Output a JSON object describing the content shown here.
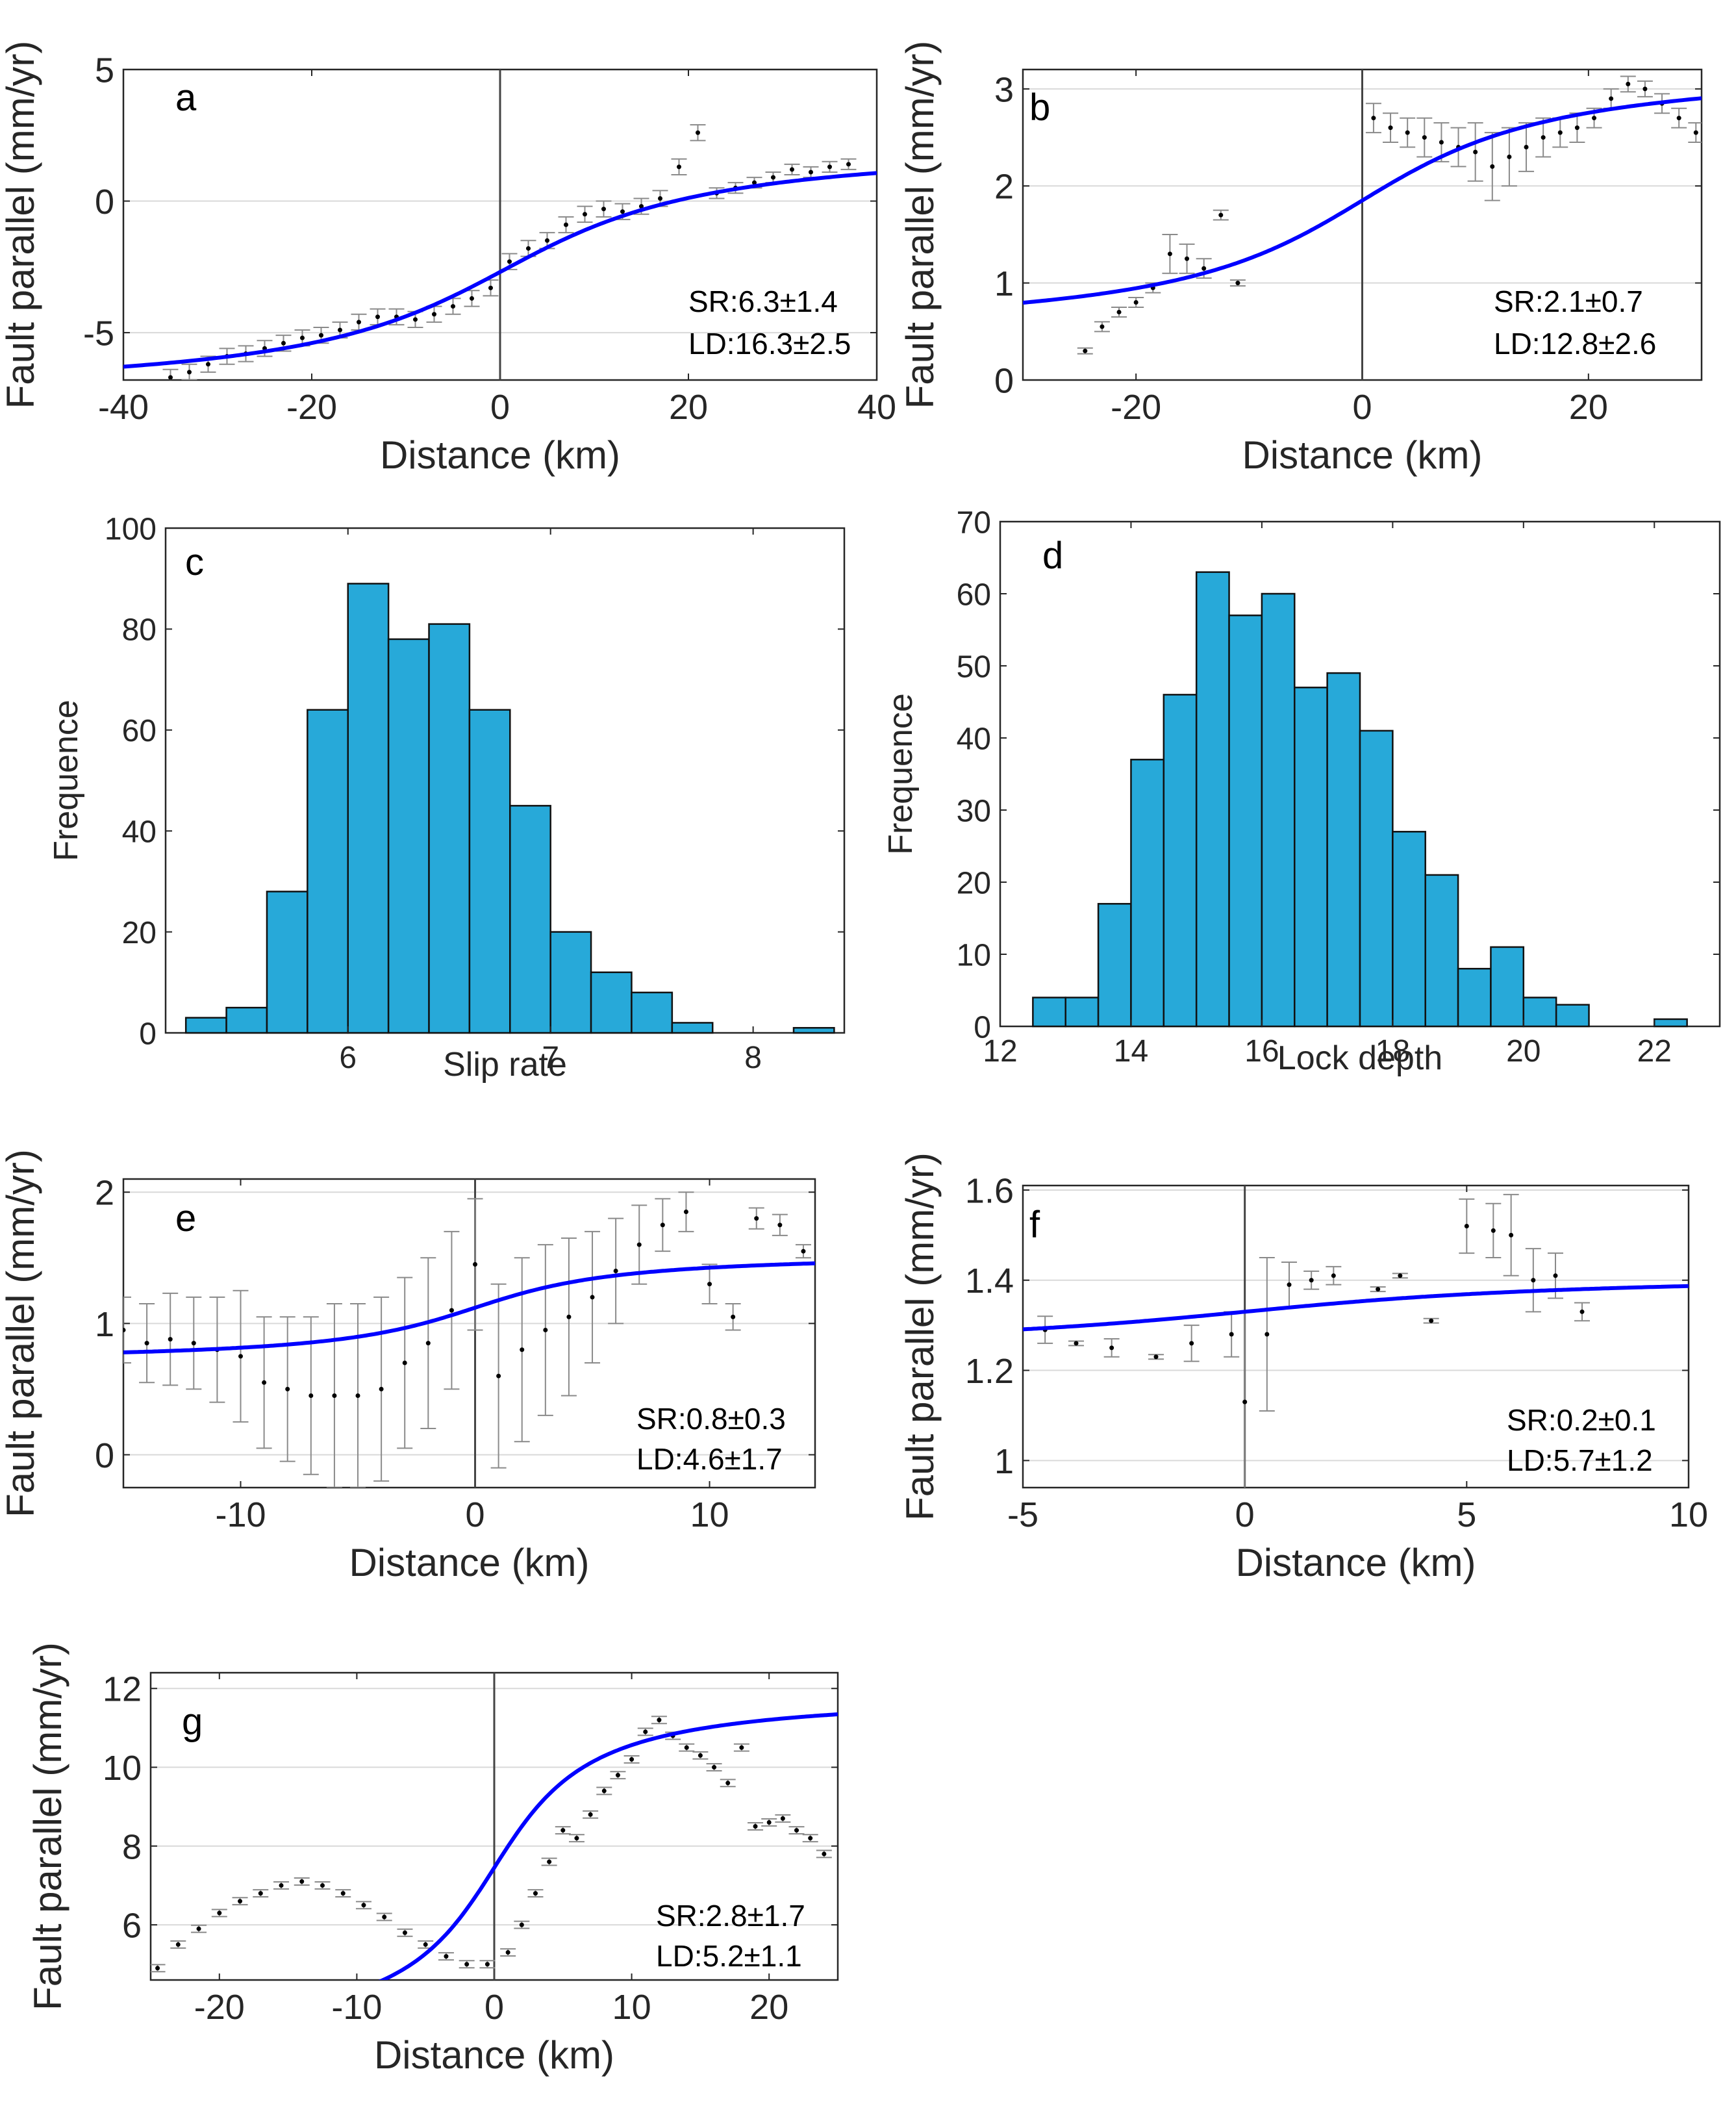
{
  "colors": {
    "fit_line": "#0000ff",
    "bar_fill": "#27a9d9",
    "bar_edge": "#111111",
    "point": "#000000",
    "error_bar": "#8a8a8a",
    "axis": "#262626",
    "grid": "#d9d9d9",
    "zero_line": "#444444"
  },
  "chart_data": [
    {
      "id": "a",
      "type": "line",
      "letter": "a",
      "xlabel": "Distance (km)",
      "ylabel": "Fault parallel (mm/yr)",
      "xlim": [
        -40,
        40
      ],
      "ylim": [
        -6.8,
        5
      ],
      "xticks": [
        -40,
        -20,
        0,
        20,
        40
      ],
      "yticks": [
        -5,
        0,
        5
      ],
      "grid": true,
      "zero_line": 0,
      "annotations": [
        "SR:6.3±1.4",
        "LD:16.3±2.5"
      ],
      "fit": {
        "slip_rate": 6.3,
        "lock_depth": 16.3,
        "offset": -2.6,
        "x0": 0.5
      },
      "observations": {
        "x": [
          -35,
          -33,
          -31,
          -29,
          -27,
          -25,
          -23,
          -21,
          -19,
          -17,
          -15,
          -13,
          -11,
          -9,
          -7,
          -5,
          -3,
          -1,
          1,
          3,
          5,
          7,
          9,
          11,
          13,
          15,
          17,
          19,
          21,
          23,
          25,
          27,
          29,
          31,
          33,
          35,
          37
        ],
        "y": [
          -6.7,
          -6.5,
          -6.2,
          -5.9,
          -5.8,
          -5.6,
          -5.4,
          -5.2,
          -5.1,
          -4.9,
          -4.6,
          -4.4,
          -4.4,
          -4.5,
          -4.3,
          -4.0,
          -3.7,
          -3.3,
          -2.3,
          -1.8,
          -1.5,
          -0.9,
          -0.5,
          -0.3,
          -0.4,
          -0.2,
          0.1,
          1.3,
          2.6,
          0.3,
          0.5,
          0.7,
          0.9,
          1.2,
          1.1,
          1.3,
          1.4
        ],
        "err": [
          0.3,
          0.3,
          0.3,
          0.3,
          0.3,
          0.3,
          0.3,
          0.3,
          0.3,
          0.3,
          0.3,
          0.3,
          0.3,
          0.3,
          0.3,
          0.3,
          0.3,
          0.3,
          0.3,
          0.3,
          0.3,
          0.3,
          0.3,
          0.3,
          0.3,
          0.3,
          0.3,
          0.3,
          0.3,
          0.2,
          0.2,
          0.2,
          0.2,
          0.2,
          0.2,
          0.2,
          0.2
        ]
      }
    },
    {
      "id": "b",
      "type": "line",
      "letter": "b",
      "xlabel": "Distance (km)",
      "ylabel": "Fault parallel (mm/yr)",
      "xlim": [
        -30,
        30
      ],
      "ylim": [
        0,
        3.2
      ],
      "xticks": [
        -20,
        0,
        20
      ],
      "yticks": [
        0,
        1,
        2,
        3
      ],
      "grid": true,
      "zero_line": 0,
      "annotations": [
        "SR:2.1±0.7",
        "LD:12.8±2.6"
      ],
      "fit": {
        "slip_rate": 2.1,
        "lock_depth": 12.8,
        "offset": 1.85,
        "x0": 0
      },
      "observations": {
        "x": [
          -24.5,
          -23,
          -21.5,
          -20,
          -18.5,
          -17,
          -15.5,
          -14,
          -12.5,
          -11,
          1,
          2.5,
          4,
          5.5,
          7,
          8.5,
          10,
          11.5,
          13,
          14.5,
          16,
          17.5,
          19,
          20.5,
          22,
          23.5,
          25,
          26.5,
          28,
          29.5
        ],
        "y": [
          0.3,
          0.55,
          0.7,
          0.8,
          0.95,
          1.3,
          1.25,
          1.15,
          1.7,
          1.0,
          2.7,
          2.6,
          2.55,
          2.5,
          2.45,
          2.4,
          2.35,
          2.2,
          2.3,
          2.4,
          2.5,
          2.55,
          2.6,
          2.7,
          2.9,
          3.05,
          3.0,
          2.85,
          2.7,
          2.55
        ],
        "err": [
          0.03,
          0.05,
          0.05,
          0.05,
          0.05,
          0.2,
          0.15,
          0.1,
          0.05,
          0.03,
          0.15,
          0.15,
          0.15,
          0.2,
          0.2,
          0.2,
          0.3,
          0.35,
          0.3,
          0.25,
          0.2,
          0.15,
          0.15,
          0.1,
          0.1,
          0.08,
          0.08,
          0.1,
          0.1,
          0.1
        ]
      }
    },
    {
      "id": "c",
      "type": "bar",
      "letter": "c",
      "xlabel": "Slip rate",
      "ylabel": "Frequence",
      "xlim": [
        5.1,
        8.45
      ],
      "ylim": [
        0,
        100
      ],
      "xticks": [
        6,
        7,
        8
      ],
      "yticks": [
        0,
        20,
        40,
        60,
        80,
        100
      ],
      "bin_edges": [
        5.2,
        5.4,
        5.6,
        5.8,
        6.0,
        6.2,
        6.4,
        6.6,
        6.8,
        7.0,
        7.2,
        7.4,
        7.6,
        7.8,
        8.0,
        8.2,
        8.4
      ],
      "values": [
        3,
        5,
        28,
        64,
        89,
        78,
        81,
        64,
        45,
        20,
        12,
        8,
        2,
        0,
        0,
        1
      ]
    },
    {
      "id": "d",
      "type": "bar",
      "letter": "d",
      "xlabel": "Lock depth",
      "ylabel": "Frequence",
      "xlim": [
        12,
        23
      ],
      "ylim": [
        0,
        70
      ],
      "xticks": [
        12,
        14,
        16,
        18,
        20,
        22
      ],
      "yticks": [
        0,
        10,
        20,
        30,
        40,
        50,
        60,
        70
      ],
      "bin_edges": [
        12.5,
        13.0,
        13.5,
        14.0,
        14.5,
        15.0,
        15.5,
        16.0,
        16.5,
        17.0,
        17.5,
        18.0,
        18.5,
        19.0,
        19.5,
        20.0,
        20.5,
        21.0,
        21.5,
        22.0,
        22.5
      ],
      "values": [
        4,
        4,
        17,
        37,
        46,
        63,
        57,
        60,
        47,
        49,
        41,
        27,
        21,
        8,
        11,
        4,
        3,
        0,
        0,
        1
      ]
    },
    {
      "id": "e",
      "type": "line",
      "letter": "e",
      "xlabel": "Distance (km)",
      "ylabel": "Fault parallel (mm/yr)",
      "xlim": [
        -15,
        14.5
      ],
      "ylim": [
        -0.25,
        2.1
      ],
      "xticks": [
        -10,
        0,
        10
      ],
      "yticks": [
        0,
        1,
        2
      ],
      "grid": true,
      "zero_line": 0,
      "annotations": [
        "SR:0.8±0.3",
        "LD:4.6±1.7"
      ],
      "fit": {
        "slip_rate": 0.8,
        "lock_depth": 4.6,
        "offset": 1.12,
        "x0": 0
      },
      "observations": {
        "x": [
          -15,
          -14,
          -13,
          -12,
          -11,
          -10,
          -9,
          -8,
          -7,
          -6,
          -5,
          -4,
          -3,
          -2,
          -1,
          0,
          1,
          2,
          3,
          4,
          5,
          6,
          7,
          8,
          9,
          10,
          11,
          12,
          13,
          14
        ],
        "y": [
          0.95,
          0.85,
          0.88,
          0.85,
          0.8,
          0.75,
          0.55,
          0.5,
          0.45,
          0.45,
          0.45,
          0.5,
          0.7,
          0.85,
          1.1,
          1.45,
          0.6,
          0.8,
          0.95,
          1.05,
          1.2,
          1.4,
          1.6,
          1.75,
          1.85,
          1.3,
          1.05,
          1.8,
          1.75,
          1.55
        ],
        "err": [
          0.25,
          0.3,
          0.35,
          0.35,
          0.4,
          0.5,
          0.5,
          0.55,
          0.6,
          0.7,
          0.7,
          0.7,
          0.65,
          0.65,
          0.6,
          0.5,
          0.7,
          0.7,
          0.65,
          0.6,
          0.5,
          0.4,
          0.3,
          0.2,
          0.15,
          0.15,
          0.1,
          0.08,
          0.08,
          0.05
        ]
      }
    },
    {
      "id": "f",
      "type": "line",
      "letter": "f",
      "xlabel": "Distance (km)",
      "ylabel": "Fault parallel (mm/yr)",
      "xlim": [
        -5,
        10
      ],
      "ylim": [
        0.94,
        1.61
      ],
      "xticks": [
        -5,
        0,
        5,
        10
      ],
      "yticks": [
        1,
        1.2,
        1.4,
        1.6
      ],
      "grid": true,
      "zero_line": 0,
      "annotations": [
        "SR:0.2±0.1",
        "LD:5.7±1.2"
      ],
      "fit": {
        "slip_rate": 0.2,
        "lock_depth": 5.7,
        "offset": 1.33,
        "x0": 0
      },
      "observations": {
        "x": [
          -4.5,
          -3.8,
          -3,
          -2,
          -1.2,
          -0.3,
          0,
          0.5,
          1.0,
          1.5,
          2,
          3,
          3.5,
          4.2,
          5,
          5.6,
          6,
          6.5,
          7,
          7.6
        ],
        "y": [
          1.29,
          1.26,
          1.25,
          1.23,
          1.26,
          1.28,
          1.13,
          1.28,
          1.39,
          1.4,
          1.41,
          1.38,
          1.41,
          1.31,
          1.52,
          1.51,
          1.5,
          1.4,
          1.41,
          1.33
        ],
        "err": [
          0.03,
          0.005,
          0.02,
          0.005,
          0.04,
          0.05,
          0.2,
          0.17,
          0.05,
          0.02,
          0.02,
          0.005,
          0.005,
          0.005,
          0.06,
          0.06,
          0.09,
          0.07,
          0.05,
          0.02
        ]
      }
    },
    {
      "id": "g",
      "type": "line",
      "letter": "g",
      "xlabel": "Distance (km)",
      "ylabel": "Fault parallel (mm/yr)",
      "xlim": [
        -25,
        25
      ],
      "ylim": [
        4.6,
        12.4
      ],
      "xticks": [
        -20,
        -10,
        0,
        10,
        20
      ],
      "yticks": [
        6,
        8,
        10,
        12
      ],
      "grid": true,
      "zero_line": 0,
      "annotations": [
        "SR:2.8±1.7",
        "LD:5.2±1.1"
      ],
      "fit": {
        "slip_rate": 2.8,
        "lock_depth": 5.2,
        "offset": 7.45,
        "x0": 0
      },
      "observations": {
        "x": [
          -24.5,
          -23,
          -21.5,
          -20,
          -18.5,
          -17,
          -15.5,
          -14,
          -12.5,
          -11,
          -9.5,
          -8,
          -6.5,
          -5,
          -3.5,
          -2,
          -0.5,
          1,
          2,
          3,
          4,
          5,
          6,
          7,
          8,
          9,
          10,
          11,
          12,
          13,
          14,
          15,
          16,
          17,
          18,
          19,
          20,
          21,
          22,
          23,
          24
        ],
        "y": [
          4.9,
          5.5,
          5.9,
          6.3,
          6.6,
          6.8,
          7.0,
          7.1,
          7.0,
          6.8,
          6.5,
          6.2,
          5.8,
          5.5,
          5.2,
          5.0,
          5.0,
          5.3,
          6.0,
          6.8,
          7.6,
          8.4,
          8.2,
          8.8,
          9.4,
          9.8,
          10.2,
          10.9,
          11.2,
          10.8,
          10.5,
          10.3,
          10.0,
          9.6,
          10.5,
          8.5,
          8.6,
          8.7,
          8.4,
          8.2,
          7.8
        ]
      }
    }
  ]
}
